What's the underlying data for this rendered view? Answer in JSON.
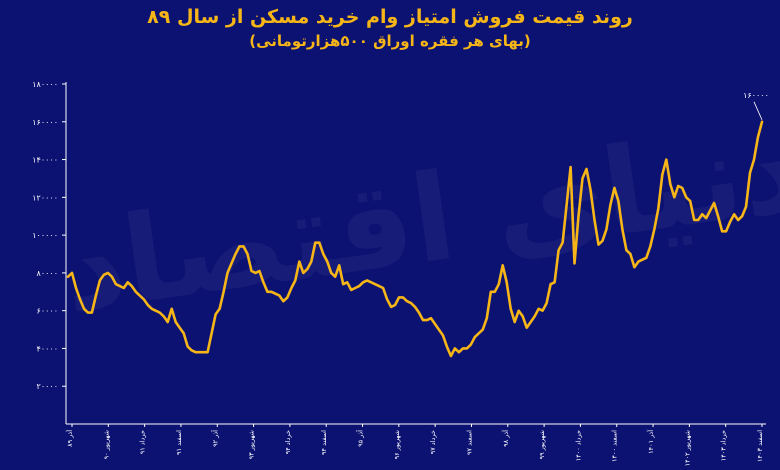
{
  "title": "روند قیمت فروش امتیاز وام خرید مسکن از سال ۸۹",
  "subtitle": "(بهای هر فقره اوراق ۵۰۰هزارتومانی)",
  "watermark": "دنیای اقتصاد",
  "colors": {
    "background": "#0c1272",
    "line": "#f7b617",
    "text": "#ffffff",
    "accent": "#f7b617"
  },
  "chart_data": {
    "type": "line",
    "title": "روند قیمت فروش امتیاز وام خرید مسکن از سال ۸۹",
    "subtitle": "(بهای هر فقره اوراق ۵۰۰هزارتومانی)",
    "xlabel": "",
    "ylabel": "",
    "ylim": [
      0,
      180000
    ],
    "yticks": [
      20000,
      40000,
      60000,
      80000,
      100000,
      120000,
      140000,
      160000,
      180000
    ],
    "ytick_labels": [
      "۲۰۰۰۰",
      "۴۰۰۰۰",
      "۶۰۰۰۰",
      "۸۰۰۰۰",
      "۱۰۰۰۰۰",
      "۱۲۰۰۰۰",
      "۱۴۰۰۰۰",
      "۱۶۰۰۰۰",
      "۱۸۰۰۰۰"
    ],
    "xtick_labels": [
      "آذر ۸۹",
      "شهریور ۹۰",
      "خرداد ۹۱",
      "اسفند ۹۱",
      "آذر ۹۲",
      "شهریور ۹۳",
      "خرداد ۹۴",
      "اسفند ۹۴",
      "آذر ۹۵",
      "شهریور ۹۶",
      "خرداد ۹۷",
      "اسفند ۹۷",
      "آذر ۹۸",
      "شهریور ۹۹",
      "خرداد ۱۴۰۰",
      "اسفند ۱۴۰۰",
      "آذر ۱۴۰۱",
      "شهریور ۱۴۰۲",
      "خرداد ۱۴۰۳",
      "اسفند ۱۴۰۳"
    ],
    "grid": false,
    "annotations": [
      {
        "text": "۱۶۰۰۰۰",
        "note": "last point"
      }
    ],
    "series": [
      {
        "values": [
          78000,
          80000,
          72000,
          66000,
          61000,
          59000,
          59000,
          68000,
          76000,
          79000,
          80000,
          78000,
          74000,
          73000,
          72000,
          75000,
          73000,
          70000,
          68000,
          66000,
          63000,
          61000,
          60000,
          59000,
          57000,
          54000,
          61000,
          54000,
          51000,
          48000,
          41000,
          39000,
          38000,
          38000,
          38000,
          38000,
          48000,
          58000,
          61000,
          70000,
          80000,
          85000,
          90000,
          94000,
          94000,
          90000,
          81000,
          80000,
          81000,
          75000,
          70000,
          70000,
          69000,
          68000,
          65000,
          67000,
          72000,
          76000,
          86000,
          80000,
          82000,
          86000,
          96000,
          96000,
          90000,
          86000,
          80000,
          78000,
          84000,
          74000,
          75000,
          71000,
          72000,
          73000,
          75000,
          76000,
          75000,
          74000,
          73000,
          72000,
          66000,
          62000,
          63000,
          67000,
          67000,
          65000,
          64000,
          62000,
          59000,
          55000,
          55000,
          56000,
          53000,
          50000,
          47000,
          41000,
          36000,
          40000,
          38000,
          40000,
          40000,
          42000,
          46000,
          48000,
          50000,
          56000,
          70000,
          70000,
          74000,
          84000,
          75000,
          61000,
          54000,
          60000,
          57000,
          51000,
          54000,
          57000,
          61000,
          60000,
          64000,
          74000,
          75000,
          92000,
          96000,
          116000,
          136000,
          85000,
          110000,
          130000,
          135000,
          124000,
          108000,
          95000,
          97000,
          103000,
          116000,
          125000,
          118000,
          103000,
          92000,
          90000,
          83000,
          86000,
          87000,
          88000,
          94000,
          103000,
          114000,
          132000,
          140000,
          127000,
          120000,
          126000,
          125000,
          120000,
          118000,
          108000,
          108000,
          111000,
          109000,
          113000,
          117000,
          110000,
          102000,
          102000,
          107000,
          111000,
          108000,
          110000,
          115000,
          133000,
          140000,
          152000,
          160000
        ]
      }
    ]
  }
}
